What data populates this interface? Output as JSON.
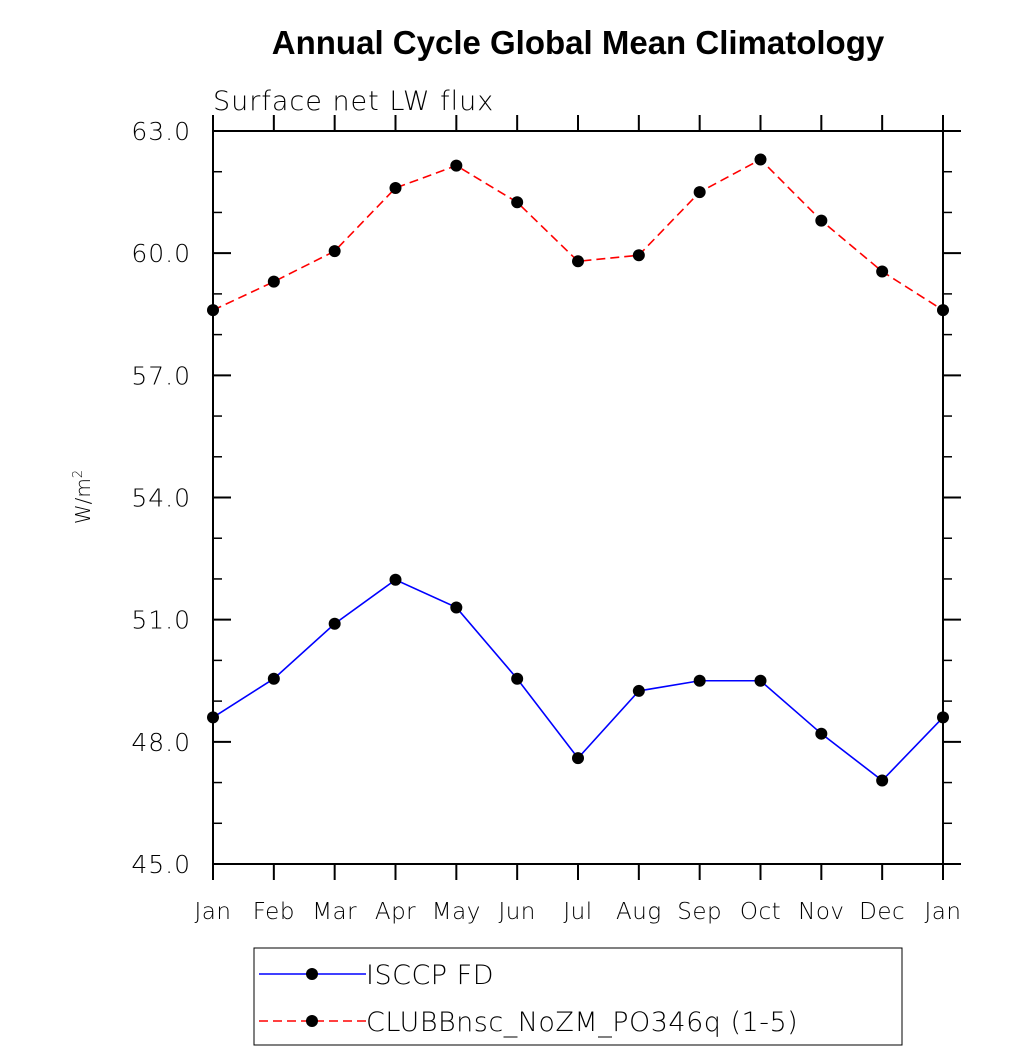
{
  "chart_data": {
    "type": "line",
    "title": "Annual Cycle Global Mean Climatology",
    "subtitle": "Surface net LW flux",
    "ylabel": "W/m",
    "ylabel_superscript": "2",
    "ylim": [
      45.0,
      63.0
    ],
    "yticks": [
      "45.0",
      "48.0",
      "51.0",
      "54.0",
      "57.0",
      "60.0",
      "63.0"
    ],
    "categories": [
      "Jan",
      "Feb",
      "Mar",
      "Apr",
      "May",
      "Jun",
      "Jul",
      "Aug",
      "Sep",
      "Oct",
      "Nov",
      "Dec",
      "Jan"
    ],
    "grid": false,
    "legend_position": "bottom",
    "series": [
      {
        "name": "ISCCP FD",
        "color": "#0000ff",
        "style": "solid",
        "marker": "filled-circle",
        "values": [
          48.6,
          49.55,
          50.9,
          51.98,
          51.3,
          49.55,
          47.6,
          49.25,
          49.5,
          49.5,
          48.2,
          47.05,
          48.6
        ]
      },
      {
        "name": "CLUBBnsc_NoZM_PO346q (1-5)",
        "color": "#ff0000",
        "style": "dashed",
        "marker": "filled-circle",
        "values": [
          58.6,
          59.3,
          60.05,
          61.6,
          62.15,
          61.25,
          59.8,
          59.95,
          61.5,
          62.3,
          60.8,
          59.55,
          58.6
        ]
      }
    ]
  }
}
